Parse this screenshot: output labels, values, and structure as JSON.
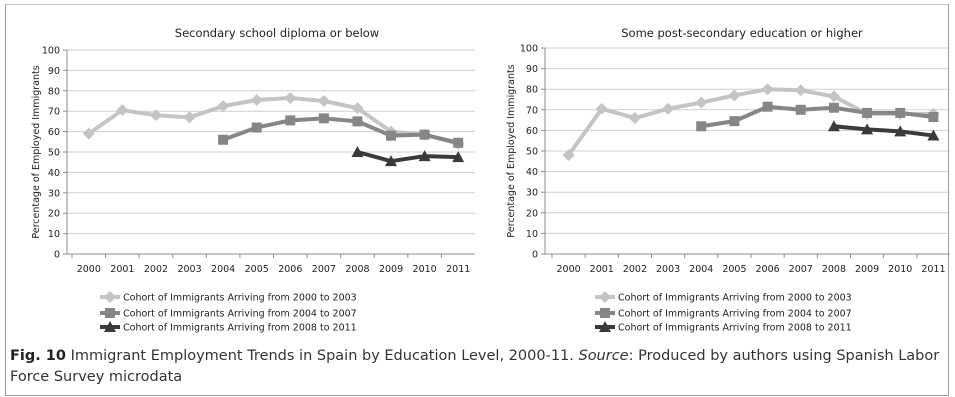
{
  "chart_data": [
    {
      "type": "line",
      "title": "Secondary school diploma or below",
      "ylabel": "Percentage of Employed Immigrants",
      "ylim": [
        0,
        100
      ],
      "yticks": [
        0,
        10,
        20,
        30,
        40,
        50,
        60,
        70,
        80,
        90,
        100
      ],
      "x": [
        "2000",
        "2001",
        "2002",
        "2003",
        "2004",
        "2005",
        "2006",
        "2007",
        "2008",
        "2009",
        "2010",
        "2011"
      ],
      "grid": true,
      "legend_position": "bottom",
      "series": [
        {
          "name": "Cohort of Immigrants Arriving from 2000 to 2003",
          "color": "#c4c4c4",
          "marker": "diamond",
          "values": [
            59,
            70.5,
            68,
            67,
            72.5,
            75.5,
            76.5,
            75,
            71.5,
            60,
            58.5,
            54
          ]
        },
        {
          "name": "Cohort of Immigrants Arriving from 2004 to 2007",
          "color": "#868686",
          "marker": "square",
          "values": [
            null,
            null,
            null,
            null,
            56,
            62,
            65.5,
            66.5,
            65,
            58,
            58.5,
            54.5
          ]
        },
        {
          "name": "Cohort of Immigrants Arriving from 2008 to 2011",
          "color": "#3a3a3a",
          "marker": "triangle",
          "values": [
            null,
            null,
            null,
            null,
            null,
            null,
            null,
            null,
            50,
            45.5,
            48,
            47.5
          ]
        }
      ]
    },
    {
      "type": "line",
      "title": "Some post-secondary education or higher",
      "ylabel": "Percentage of Employed Immigrants",
      "ylim": [
        0,
        100
      ],
      "yticks": [
        0,
        10,
        20,
        30,
        40,
        50,
        60,
        70,
        80,
        90,
        100
      ],
      "x": [
        "2000",
        "2001",
        "2002",
        "2003",
        "2004",
        "2005",
        "2006",
        "2007",
        "2008",
        "2009",
        "2010",
        "2011"
      ],
      "grid": true,
      "legend_position": "bottom",
      "series": [
        {
          "name": "Cohort of Immigrants Arriving from 2000 to 2003",
          "color": "#c4c4c4",
          "marker": "diamond",
          "values": [
            48,
            70.5,
            66,
            70.5,
            73.5,
            77,
            80,
            79.5,
            76.5,
            68,
            68,
            68
          ]
        },
        {
          "name": "Cohort of Immigrants Arriving from 2004 to 2007",
          "color": "#868686",
          "marker": "square",
          "values": [
            null,
            null,
            null,
            null,
            62,
            64.5,
            71.5,
            70,
            71,
            68.5,
            68.5,
            66.5
          ]
        },
        {
          "name": "Cohort of Immigrants Arriving from 2008 to 2011",
          "color": "#3a3a3a",
          "marker": "triangle",
          "values": [
            null,
            null,
            null,
            null,
            null,
            null,
            null,
            null,
            62,
            60.5,
            59.5,
            57.5
          ]
        }
      ]
    }
  ],
  "caption": {
    "label": "Fig. 10",
    "text": " Immigrant Employment Trends in Spain by Education Level, 2000-11. ",
    "source_label": "Source",
    "source_text": ": Produced by authors using Spanish Labor Force Survey microdata"
  }
}
